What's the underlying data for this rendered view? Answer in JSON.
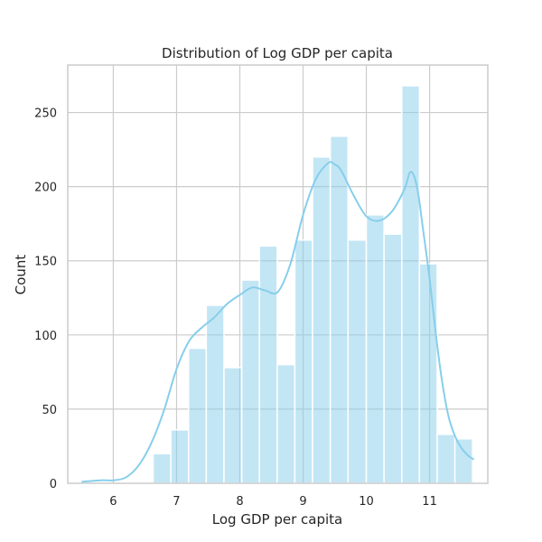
{
  "chart_data": {
    "type": "bar",
    "title": "Distribution of Log GDP per capita",
    "xlabel": "Log GDP per capita",
    "ylabel": "Count",
    "xlim": [
      5.28,
      11.92
    ],
    "ylim": [
      0,
      282
    ],
    "xticks": [
      "6",
      "7",
      "8",
      "9",
      "10",
      "11"
    ],
    "xtick_values": [
      6,
      7,
      8,
      9,
      10,
      11
    ],
    "yticks": [
      "0",
      "50",
      "100",
      "150",
      "200",
      "250"
    ],
    "ytick_values": [
      0,
      50,
      100,
      150,
      200,
      250
    ],
    "grid": true,
    "bar_color": "#87ceeb",
    "kde_color": "#87ceeb",
    "bin_edges": [
      6.63,
      6.91,
      7.19,
      7.47,
      7.75,
      8.03,
      8.31,
      8.59,
      8.87,
      9.15,
      9.43,
      9.71,
      10.0,
      10.28,
      10.56,
      10.84,
      11.12,
      11.4,
      11.68
    ],
    "counts": [
      20,
      36,
      91,
      120,
      78,
      137,
      160,
      80,
      164,
      220,
      234,
      164,
      181,
      168,
      268,
      148,
      33,
      30
    ],
    "kde": {
      "x": [
        5.5,
        5.8,
        6.0,
        6.2,
        6.4,
        6.6,
        6.8,
        7.0,
        7.2,
        7.4,
        7.6,
        7.8,
        8.0,
        8.2,
        8.4,
        8.6,
        8.8,
        9.0,
        9.2,
        9.4,
        9.5,
        9.6,
        9.8,
        10.0,
        10.2,
        10.4,
        10.6,
        10.7,
        10.8,
        10.9,
        11.0,
        11.1,
        11.2,
        11.3,
        11.4,
        11.5,
        11.6,
        11.7
      ],
      "y": [
        1,
        2,
        2,
        4,
        12,
        27,
        49,
        77,
        96,
        105,
        112,
        121,
        127,
        132,
        130,
        129,
        148,
        181,
        205,
        216,
        215,
        211,
        194,
        180,
        177,
        183,
        198,
        210,
        200,
        170,
        138,
        100,
        68,
        45,
        32,
        24,
        19,
        16
      ]
    }
  }
}
